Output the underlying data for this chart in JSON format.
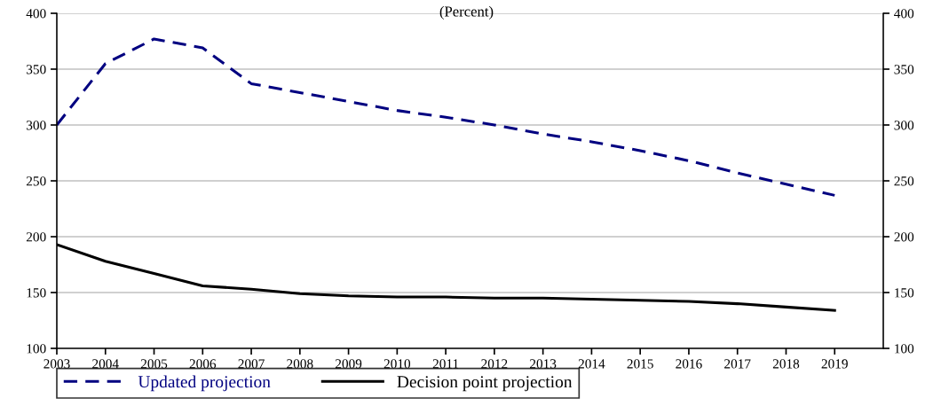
{
  "chart_data": {
    "type": "line",
    "title": "(Percent)",
    "categories": [
      "2003",
      "2004",
      "2005",
      "2006",
      "2007",
      "2008",
      "2009",
      "2010",
      "2011",
      "2012",
      "2013",
      "2014",
      "2015",
      "2016",
      "2017",
      "2018",
      "2019"
    ],
    "series": [
      {
        "name": "Updated projection",
        "color": "#000080",
        "line_style": "dashed",
        "values": [
          300,
          355,
          377,
          369,
          337,
          329,
          321,
          313,
          307,
          300,
          292,
          285,
          277,
          268,
          257,
          247,
          237
        ]
      },
      {
        "name": "Decision point projection",
        "color": "#000000",
        "line_style": "solid",
        "values": [
          193,
          178,
          167,
          156,
          153,
          149,
          147,
          146,
          146,
          145,
          145,
          144,
          143,
          142,
          140,
          137,
          134
        ]
      }
    ],
    "ylim": [
      100,
      400
    ],
    "yticks": [
      100,
      150,
      200,
      250,
      300,
      350,
      400
    ],
    "y2lim": [
      100,
      400
    ],
    "y2ticks": [
      100,
      150,
      200,
      250,
      300,
      350,
      400
    ],
    "grid": "y",
    "legend": "bottom",
    "marker": "none"
  }
}
